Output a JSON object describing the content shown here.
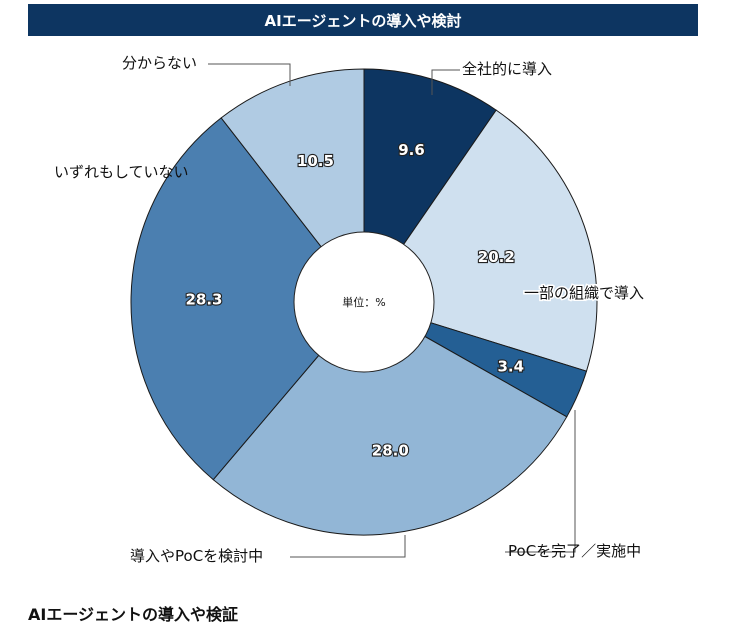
{
  "chart_data": {
    "type": "pie",
    "title": "AIエージェントの導入や検討",
    "unit": "単位：%",
    "categories": [
      "全社的に導入",
      "一部の組織で導入",
      "PoCを完了／実施中",
      "導入やPoCを検討中",
      "いずれもしていない",
      "分からない"
    ],
    "values": [
      9.6,
      20.2,
      3.4,
      28.0,
      28.3,
      10.5
    ],
    "value_labels": [
      "9.6",
      "20.2",
      "3.4",
      "28.0",
      "28.3",
      "10.5"
    ],
    "colors": [
      "#0d3561",
      "#cfe0ef",
      "#245f94",
      "#92b6d6",
      "#4b7fb0",
      "#b0cbe3"
    ],
    "legend": "none"
  },
  "caption": "AIエージェントの導入や検証"
}
